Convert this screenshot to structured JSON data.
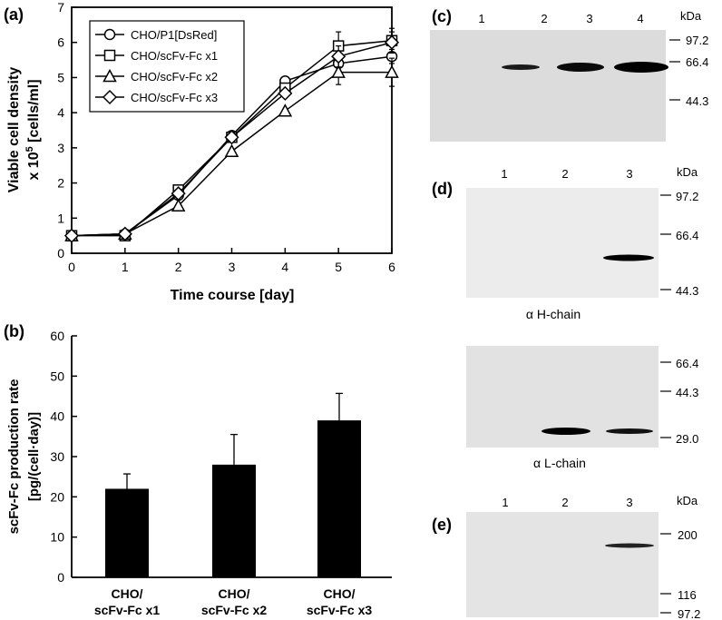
{
  "panels": {
    "a": "(a)",
    "b": "(b)",
    "c": "(c)",
    "d": "(d)",
    "e": "(e)"
  },
  "chart_data": [
    {
      "type": "line",
      "panel": "(a)",
      "xlabel": "Time course [day]",
      "ylabel_line1": "Viable cell density",
      "ylabel_line2_prefix": "x 10",
      "ylabel_line2_sup": "5",
      "ylabel_line2_suffix": " [cells/ml]",
      "xlim": [
        0,
        6
      ],
      "ylim": [
        0,
        7
      ],
      "x": [
        0,
        1,
        2,
        3,
        4,
        5,
        6
      ],
      "xticks": [
        "0",
        "1",
        "2",
        "3",
        "4",
        "5",
        "6"
      ],
      "yticks": [
        "0",
        "1",
        "2",
        "3",
        "4",
        "5",
        "6",
        "7"
      ],
      "legend_position": "top-left",
      "series": [
        {
          "name": "CHO/P1[DsRed]",
          "marker": "circle",
          "values": [
            0.5,
            0.55,
            1.65,
            3.35,
            4.9,
            5.4,
            5.6
          ],
          "errors": [
            0,
            0,
            0,
            0,
            0,
            0.2,
            0.2
          ]
        },
        {
          "name": "CHO/scFv-Fc x1",
          "marker": "square",
          "values": [
            0.5,
            0.5,
            1.8,
            3.3,
            4.7,
            5.9,
            6.05
          ],
          "errors": [
            0,
            0,
            0,
            0,
            0,
            0.4,
            0.35
          ]
        },
        {
          "name": "CHO/scFv-Fc x2",
          "marker": "triangle",
          "values": [
            0.5,
            0.55,
            1.35,
            2.9,
            4.05,
            5.15,
            5.15
          ],
          "errors": [
            0,
            0,
            0,
            0,
            0,
            0.35,
            0.4
          ]
        },
        {
          "name": "CHO/scFv-Fc x3",
          "marker": "diamond",
          "values": [
            0.5,
            0.55,
            1.7,
            3.3,
            4.55,
            5.6,
            6.0
          ],
          "errors": [
            0,
            0,
            0,
            0,
            0,
            0.3,
            0.3
          ]
        }
      ]
    },
    {
      "type": "bar",
      "panel": "(b)",
      "ylabel_line1": "scFv-Fc production rate",
      "ylabel_line2": "[pg/(cell·day)]",
      "ylim": [
        0,
        60
      ],
      "yticks": [
        "0",
        "10",
        "20",
        "30",
        "40",
        "50",
        "60"
      ],
      "categories": [
        {
          "line1": "CHO/",
          "line2": "scFv-Fc x1"
        },
        {
          "line1": "CHO/",
          "line2": "scFv-Fc x2"
        },
        {
          "line1": "CHO/",
          "line2": "scFv-Fc x3"
        }
      ],
      "values": [
        22,
        28,
        39
      ],
      "errors": [
        3.7,
        7.5,
        6.7
      ]
    }
  ],
  "blots": {
    "c": {
      "lanes": [
        "1",
        "2",
        "3",
        "4"
      ],
      "unit": "kDa",
      "markers": [
        "97.2",
        "66.4",
        "44.3"
      ]
    },
    "d_top": {
      "lanes": [
        "1",
        "2",
        "3"
      ],
      "unit": "kDa",
      "markers": [
        "97.2",
        "66.4",
        "44.3"
      ],
      "caption": "α H-chain"
    },
    "d_bottom": {
      "markers": [
        "66.4",
        "44.3",
        "29.0"
      ],
      "caption": "α L-chain"
    },
    "e": {
      "lanes": [
        "1",
        "2",
        "3"
      ],
      "unit": "kDa",
      "markers": [
        "200",
        "116",
        "97.2"
      ]
    }
  }
}
